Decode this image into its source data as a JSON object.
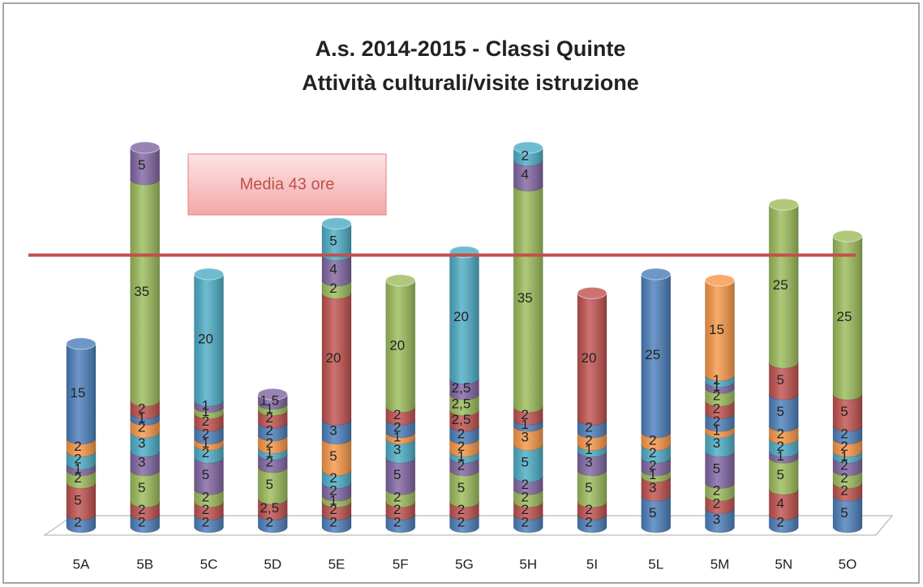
{
  "chart_data": {
    "type": "stacked-cylinder",
    "title": "A.s. 2014-2015 - Classi  Quinte",
    "subtitle": "Attività culturali/visite istruzione",
    "categories": [
      "5A",
      "5B",
      "5C",
      "5D",
      "5E",
      "5F",
      "5G",
      "5H",
      "5I",
      "5L",
      "5M",
      "5N",
      "5O"
    ],
    "ylim": [
      0,
      62
    ],
    "reference_line": {
      "value": 43,
      "label": "Media 43 ore",
      "color": "#c0504d"
    },
    "series": [
      {
        "color": "#4a7ebb",
        "values": [
          2,
          2,
          2,
          2,
          2,
          2,
          2,
          2,
          2,
          5,
          3,
          2,
          5
        ]
      },
      {
        "color": "#c0504d",
        "values": [
          5,
          2,
          2,
          2.5,
          2,
          2,
          2,
          2,
          2,
          3,
          2,
          4,
          2
        ],
        "value_labels": [
          null,
          null,
          null,
          "2,5",
          null,
          null,
          null,
          null,
          null,
          null,
          null,
          null,
          null
        ]
      },
      {
        "color": "#9bbb59",
        "values": [
          2,
          5,
          2,
          5,
          1,
          2,
          5,
          2,
          5,
          1,
          2,
          5,
          2
        ]
      },
      {
        "color": "#8064a2",
        "values": [
          1,
          3,
          5,
          2,
          2,
          5,
          2,
          2,
          3,
          2,
          5,
          1,
          2
        ]
      },
      {
        "color": "#4bacc6",
        "values": [
          2,
          3,
          2,
          1,
          2,
          3,
          1,
          5,
          1,
          2,
          3,
          2,
          1
        ]
      },
      {
        "color": "#f79646",
        "values": [
          2,
          2,
          1,
          2,
          5,
          1,
          2,
          3,
          2,
          2,
          1,
          2,
          2
        ]
      },
      {
        "color": "#4a7ebb",
        "values": [
          15,
          1,
          2,
          2,
          3,
          2,
          2,
          1,
          2,
          25,
          2,
          5,
          2
        ]
      },
      {
        "color": "#c0504d",
        "values": [
          null,
          2,
          2,
          2,
          20,
          2,
          2.5,
          2,
          20,
          null,
          2,
          5,
          5
        ],
        "value_labels": [
          null,
          null,
          null,
          null,
          null,
          null,
          "2,5",
          null,
          null,
          null,
          null,
          null,
          null
        ]
      },
      {
        "color": "#9bbb59",
        "values": [
          null,
          35,
          1,
          1,
          2,
          20,
          2.5,
          35,
          null,
          null,
          2,
          25,
          25
        ],
        "value_labels": [
          null,
          null,
          null,
          null,
          null,
          null,
          "2,5",
          null,
          null,
          null,
          null,
          null,
          null
        ]
      },
      {
        "color": "#8064a2",
        "values": [
          null,
          5,
          1,
          1.5,
          4,
          null,
          2.5,
          4,
          null,
          null,
          1,
          null,
          null
        ],
        "value_labels": [
          null,
          null,
          null,
          "1,5",
          null,
          null,
          "2,5",
          null,
          null,
          null,
          null,
          null,
          null
        ]
      },
      {
        "color": "#4bacc6",
        "values": [
          null,
          null,
          20,
          null,
          5,
          null,
          20,
          2,
          null,
          null,
          1,
          null,
          null
        ]
      },
      {
        "color": "#f79646",
        "values": [
          null,
          null,
          null,
          null,
          null,
          null,
          null,
          null,
          null,
          null,
          15,
          null,
          null
        ]
      }
    ]
  }
}
